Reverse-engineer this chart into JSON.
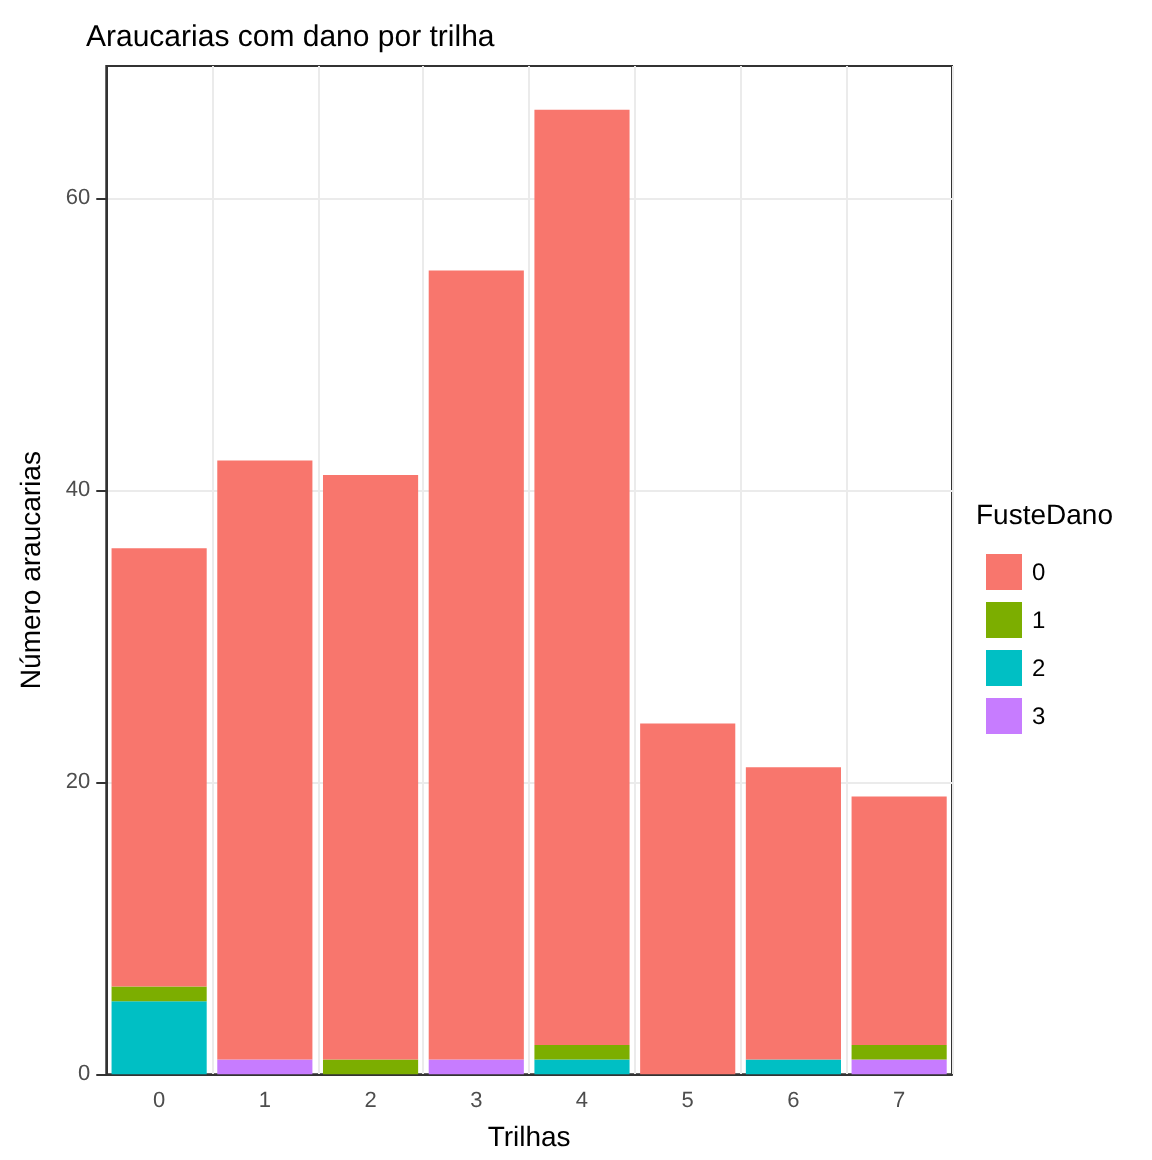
{
  "chart_data": {
    "type": "bar",
    "title": "Araucarias com dano por trilha",
    "xlabel": "Trilhas",
    "ylabel": "Número araucarias",
    "legend_title": "FusteDano",
    "categories": [
      "0",
      "1",
      "2",
      "3",
      "4",
      "5",
      "6",
      "7"
    ],
    "stacked": true,
    "series": [
      {
        "name": "3",
        "color": "#c77cff",
        "values": [
          0,
          1,
          0,
          1,
          0,
          0,
          0,
          1
        ]
      },
      {
        "name": "2",
        "color": "#00bfc4",
        "values": [
          5,
          0,
          0,
          0,
          1,
          0,
          1,
          0
        ]
      },
      {
        "name": "1",
        "color": "#7cae00",
        "values": [
          1,
          0,
          1,
          0,
          1,
          0,
          0,
          1
        ]
      },
      {
        "name": "0",
        "color": "#f8766d",
        "values": [
          30,
          41,
          40,
          54,
          64,
          24,
          20,
          17
        ]
      }
    ],
    "ylim": [
      0,
      69
    ],
    "yticks": [
      0,
      20,
      40,
      60
    ],
    "grid": true,
    "legend": "right"
  }
}
